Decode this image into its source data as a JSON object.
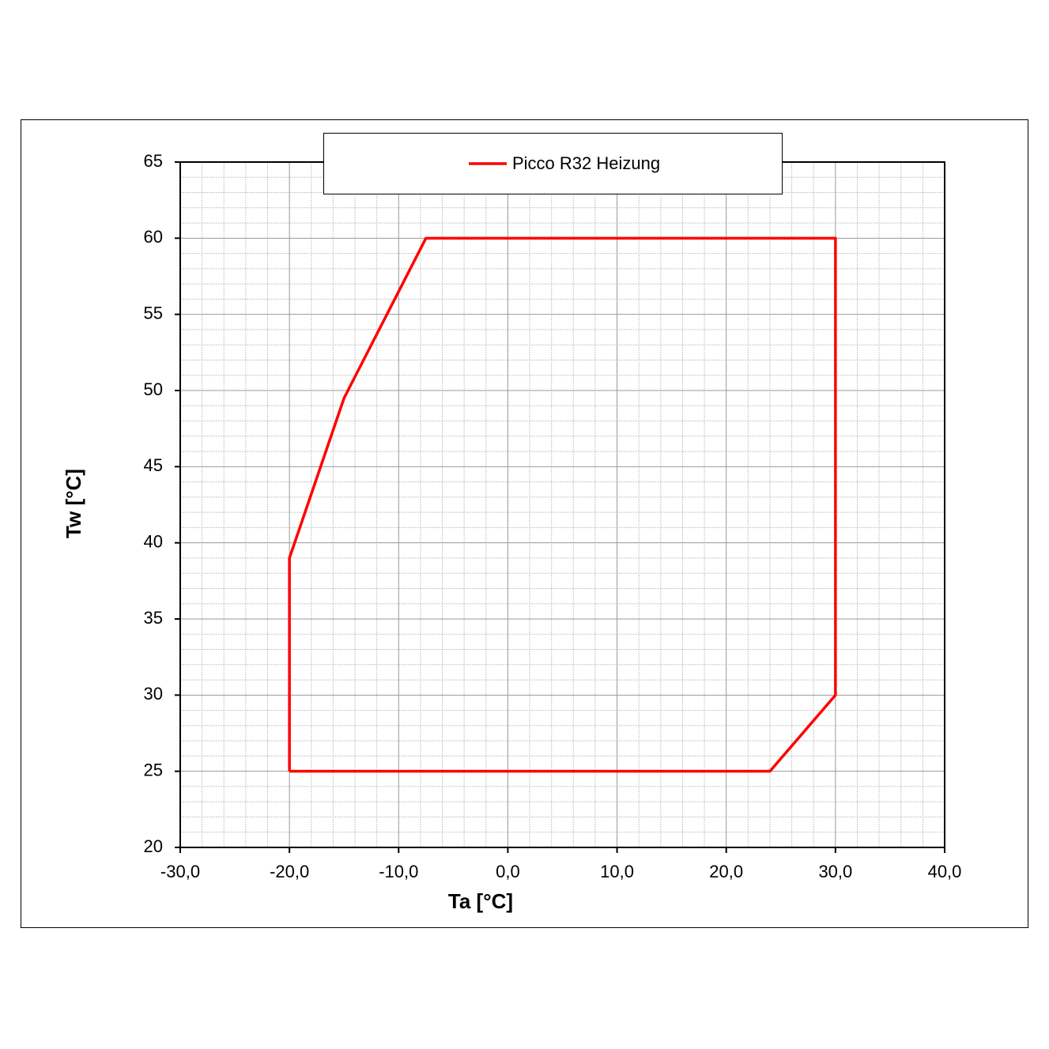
{
  "chart_data": {
    "type": "line",
    "x_label": "Ta [°C]",
    "y_label": "Tw [°C]",
    "x": [
      -20,
      -20,
      -15,
      -7.5,
      30,
      30,
      24,
      -20
    ],
    "series": [
      {
        "name": "Picco R32 Heizung",
        "color": "#ff0000",
        "values": [
          25,
          39,
          49.5,
          60,
          60,
          30,
          25,
          25
        ]
      }
    ],
    "xlim": [
      -30,
      40
    ],
    "xticks": [
      {
        "value": -30,
        "label": "-30,0"
      },
      {
        "value": -20,
        "label": "-20,0"
      },
      {
        "value": -10,
        "label": "-10,0"
      },
      {
        "value": 0,
        "label": "0,0"
      },
      {
        "value": 10,
        "label": "10,0"
      },
      {
        "value": 20,
        "label": "20,0"
      },
      {
        "value": 30,
        "label": "30,0"
      },
      {
        "value": 40,
        "label": "40,0"
      }
    ],
    "ylim": [
      20,
      65
    ],
    "yticks": [
      20,
      25,
      30,
      35,
      40,
      45,
      50,
      55,
      60,
      65
    ],
    "grid": true,
    "legend": "top"
  }
}
